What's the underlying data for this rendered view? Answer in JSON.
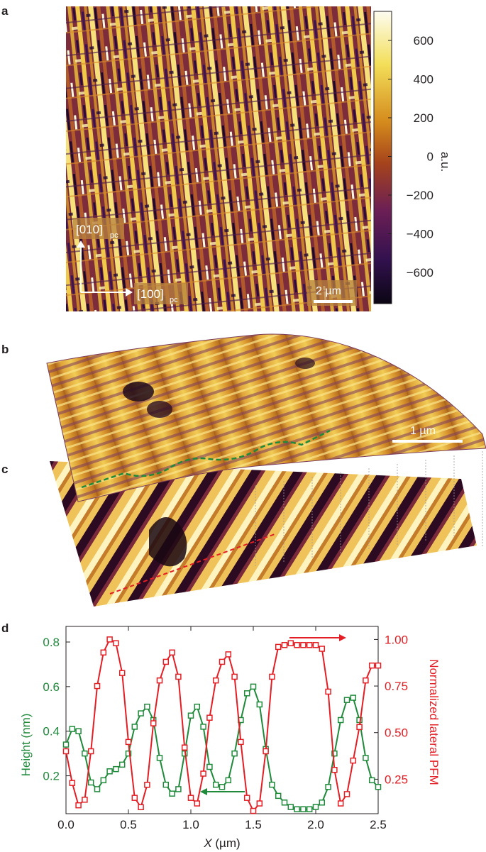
{
  "panels": {
    "a": {
      "label": "a",
      "colorbar": {
        "ticks": [
          "600",
          "400",
          "200",
          "0",
          "−200",
          "−400",
          "−600"
        ],
        "unit": "a.u.",
        "stops": [
          "#fdfcf0",
          "#f3df5a",
          "#d48a1c",
          "#a5431c",
          "#6c1f55",
          "#32114e",
          "#0b0614"
        ]
      },
      "dir_y": "[010]",
      "dir_y_sub": "pc",
      "dir_x": "[100]",
      "dir_x_sub": "pc",
      "scalebar": "2 µm"
    },
    "b": {
      "label": "b",
      "scalebar": "1 µm"
    },
    "c": {
      "label": "c"
    },
    "d": {
      "label": "d"
    }
  },
  "chart_data": {
    "type": "line",
    "xlabel_italic": "X",
    "xlabel_unit": " (µm)",
    "ylabel": "Height (nm)",
    "y2label": "Normalized lateral PFM",
    "xlim": [
      0,
      2.5
    ],
    "ylim": [
      0.03,
      0.87
    ],
    "y2lim": [
      0.065,
      1.07
    ],
    "xticks": [
      "0.0",
      "0.5",
      "1.0",
      "1.5",
      "2.0",
      "2.5"
    ],
    "yticks": [
      "0.2",
      "0.4",
      "0.6",
      "0.8"
    ],
    "y2ticks": [
      "0.25",
      "0.50",
      "0.75",
      "1.00"
    ],
    "series": [
      {
        "axis": "left",
        "color": "#1f8a3a",
        "x": [
          0.0,
          0.05,
          0.1,
          0.15,
          0.2,
          0.25,
          0.3,
          0.35,
          0.4,
          0.45,
          0.5,
          0.55,
          0.6,
          0.65,
          0.7,
          0.75,
          0.8,
          0.85,
          0.9,
          0.95,
          1.0,
          1.05,
          1.1,
          1.15,
          1.2,
          1.25,
          1.3,
          1.35,
          1.4,
          1.45,
          1.5,
          1.55,
          1.6,
          1.65,
          1.7,
          1.75,
          1.8,
          1.85,
          1.9,
          1.95,
          2.0,
          2.05,
          2.1,
          2.15,
          2.2,
          2.25,
          2.3,
          2.35,
          2.4,
          2.45,
          2.5
        ],
        "values": [
          0.34,
          0.41,
          0.4,
          0.3,
          0.17,
          0.14,
          0.18,
          0.22,
          0.23,
          0.25,
          0.3,
          0.42,
          0.48,
          0.51,
          0.45,
          0.28,
          0.16,
          0.12,
          0.14,
          0.3,
          0.47,
          0.51,
          0.42,
          0.24,
          0.16,
          0.15,
          0.18,
          0.3,
          0.45,
          0.57,
          0.6,
          0.52,
          0.32,
          0.16,
          0.11,
          0.08,
          0.06,
          0.05,
          0.05,
          0.05,
          0.06,
          0.08,
          0.15,
          0.3,
          0.45,
          0.54,
          0.55,
          0.45,
          0.28,
          0.18,
          0.15
        ]
      },
      {
        "axis": "right",
        "color": "#e31e24",
        "x": [
          0.0,
          0.05,
          0.1,
          0.15,
          0.2,
          0.25,
          0.3,
          0.35,
          0.4,
          0.45,
          0.5,
          0.55,
          0.6,
          0.65,
          0.7,
          0.75,
          0.8,
          0.85,
          0.9,
          0.95,
          1.0,
          1.05,
          1.1,
          1.15,
          1.2,
          1.25,
          1.3,
          1.35,
          1.4,
          1.45,
          1.5,
          1.55,
          1.6,
          1.65,
          1.7,
          1.75,
          1.8,
          1.85,
          1.9,
          1.95,
          2.0,
          2.05,
          2.1,
          2.15,
          2.2,
          2.25,
          2.3,
          2.35,
          2.4,
          2.45,
          2.5
        ],
        "values": [
          0.4,
          0.23,
          0.11,
          0.14,
          0.4,
          0.75,
          0.93,
          1.0,
          0.98,
          0.82,
          0.45,
          0.15,
          0.1,
          0.22,
          0.55,
          0.78,
          0.88,
          0.93,
          0.8,
          0.42,
          0.15,
          0.12,
          0.28,
          0.58,
          0.78,
          0.88,
          0.92,
          0.8,
          0.45,
          0.15,
          0.08,
          0.12,
          0.4,
          0.8,
          0.96,
          0.97,
          0.98,
          0.97,
          0.97,
          0.97,
          0.97,
          0.95,
          0.72,
          0.3,
          0.12,
          0.17,
          0.35,
          0.53,
          0.78,
          0.86,
          0.86
        ]
      }
    ],
    "arrows": [
      {
        "direction": "right",
        "color": "#e31e24"
      },
      {
        "direction": "left",
        "color": "#1f8a3a"
      }
    ]
  }
}
